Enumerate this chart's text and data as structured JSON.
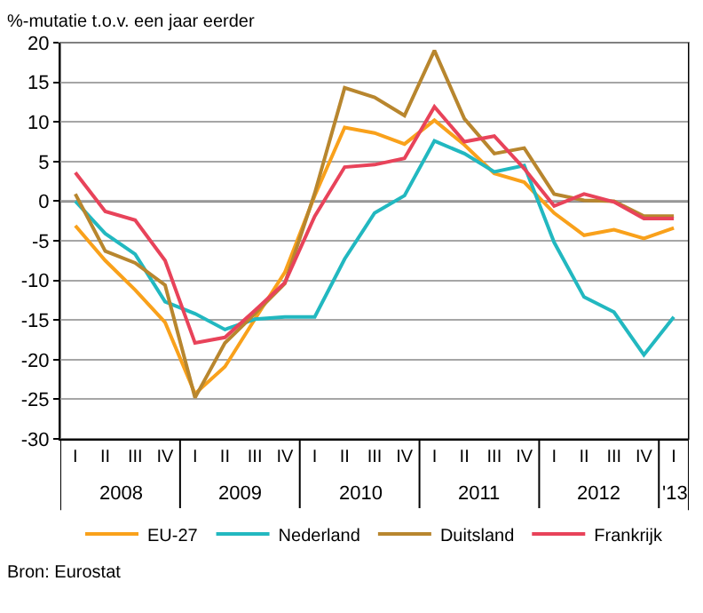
{
  "chart_data": {
    "type": "line",
    "ylabel": "%-mutatie t.o.v. een jaar eerder",
    "categories": [
      "I",
      "II",
      "III",
      "IV",
      "I",
      "II",
      "III",
      "IV",
      "I",
      "II",
      "III",
      "IV",
      "I",
      "II",
      "III",
      "IV",
      "I",
      "II",
      "III",
      "IV",
      "I"
    ],
    "series": [
      {
        "name": "EU-27",
        "color": "#f9a11b",
        "values": [
          -3.1,
          -7.5,
          -11.2,
          -15.3,
          -24.3,
          -20.9,
          -14.9,
          -9.0,
          0.7,
          9.3,
          8.6,
          7.2,
          10.2,
          7.1,
          3.5,
          2.4,
          -1.5,
          -4.3,
          -3.6,
          -4.7,
          -3.4
        ]
      },
      {
        "name": "Nederland",
        "color": "#22b8c0",
        "values": [
          0,
          -4.1,
          -6.7,
          -12.7,
          -14.2,
          -16.2,
          -14.9,
          -14.6,
          -14.6,
          -7.3,
          -1.5,
          0.7,
          7.6,
          6.0,
          3.7,
          4.5,
          -5.2,
          -12.1,
          -14.0,
          -19.4,
          -14.6
        ]
      },
      {
        "name": "Duitsland",
        "color": "#b8862e",
        "values": [
          0.9,
          -6.3,
          -7.8,
          -10.6,
          -24.8,
          -17.9,
          -14.2,
          -10.4,
          1.0,
          14.3,
          13.1,
          10.8,
          19.0,
          10.4,
          6.0,
          6.7,
          0.9,
          0.1,
          0.0,
          -1.9,
          -1.9
        ]
      },
      {
        "name": "Frankrijk",
        "color": "#e8435a",
        "values": [
          3.6,
          -1.3,
          -2.4,
          -7.5,
          -17.9,
          -17.2,
          -13.8,
          -10.3,
          -1.9,
          4.3,
          4.6,
          5.4,
          11.9,
          7.5,
          8.2,
          4.1,
          -0.6,
          0.9,
          -0.1,
          -2.2,
          -2.2
        ]
      }
    ],
    "ylim": [
      -30,
      20
    ],
    "yticks": [
      -30,
      -25,
      -20,
      -15,
      -10,
      -5,
      0,
      5,
      10,
      15,
      20
    ],
    "grid": "y",
    "legend": "bottom",
    "marker": "none",
    "line_style": "solid",
    "ref_lines": [
      {
        "axis": "y",
        "value": 0,
        "color": "#000000"
      }
    ],
    "annotations": [
      "2008",
      "2009",
      "2010",
      "2011",
      "2012",
      "'13",
      "Bron: Eurostat"
    ]
  }
}
